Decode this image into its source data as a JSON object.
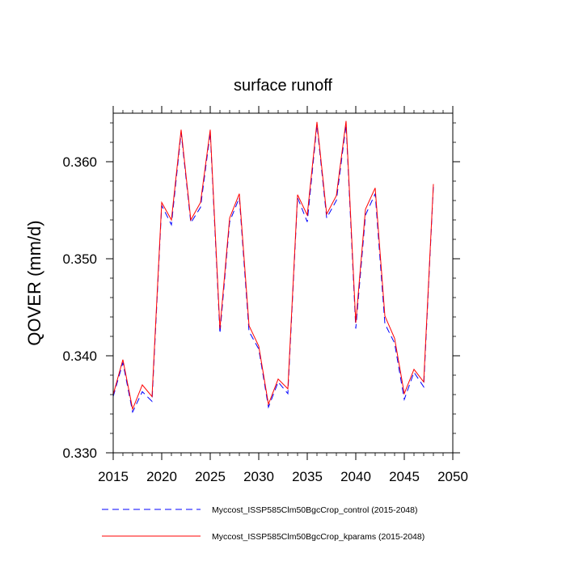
{
  "chart_data": {
    "type": "line",
    "title": "surface runoff",
    "xlabel": "",
    "ylabel": "QOVER  (mm/d)",
    "xlim": [
      2015,
      2050
    ],
    "ylim": [
      0.33,
      0.365
    ],
    "x_ticks": [
      2015,
      2020,
      2025,
      2030,
      2035,
      2040,
      2045,
      2050
    ],
    "x_tick_labels": [
      "2015",
      "2020",
      "2025",
      "2030",
      "2035",
      "2040",
      "2045",
      "2050"
    ],
    "y_ticks": [
      0.33,
      0.34,
      0.35,
      0.36
    ],
    "y_tick_labels": [
      "0.330",
      "0.340",
      "0.350",
      "0.360"
    ],
    "grid": false,
    "legend_position": "bottom",
    "x": [
      2015,
      2016,
      2017,
      2018,
      2019,
      2020,
      2021,
      2022,
      2023,
      2024,
      2025,
      2026,
      2027,
      2028,
      2029,
      2030,
      2031,
      2032,
      2033,
      2034,
      2035,
      2036,
      2037,
      2038,
      2039,
      2040,
      2041,
      2042,
      2043,
      2044,
      2045,
      2046,
      2047,
      2048
    ],
    "series": [
      {
        "name": "Myccost_ISSP585Clm50BgcCrop_control (2015-2048)",
        "color": "#0000ff",
        "dash": "dashed",
        "values": [
          0.3358,
          0.3393,
          0.3342,
          0.3363,
          0.3353,
          0.3555,
          0.3535,
          0.363,
          0.3537,
          0.3553,
          0.363,
          0.3423,
          0.3538,
          0.3563,
          0.3425,
          0.3407,
          0.3347,
          0.3373,
          0.3361,
          0.3563,
          0.3538,
          0.3638,
          0.3542,
          0.356,
          0.3638,
          0.3428,
          0.3545,
          0.3567,
          0.3433,
          0.3413,
          0.3355,
          0.3383,
          0.3368,
          0.3575
        ]
      },
      {
        "name": "Myccost_ISSP585Clm50BgcCrop_kparams (2015-2048)",
        "color": "#ff0000",
        "dash": "solid",
        "values": [
          0.336,
          0.3396,
          0.3345,
          0.337,
          0.3358,
          0.3558,
          0.354,
          0.3633,
          0.354,
          0.3558,
          0.3633,
          0.3428,
          0.3542,
          0.3567,
          0.3431,
          0.341,
          0.335,
          0.3376,
          0.3366,
          0.3566,
          0.3545,
          0.3641,
          0.3546,
          0.3565,
          0.3642,
          0.3434,
          0.3551,
          0.3573,
          0.3441,
          0.3418,
          0.3361,
          0.3386,
          0.3373,
          0.3577
        ]
      }
    ]
  }
}
